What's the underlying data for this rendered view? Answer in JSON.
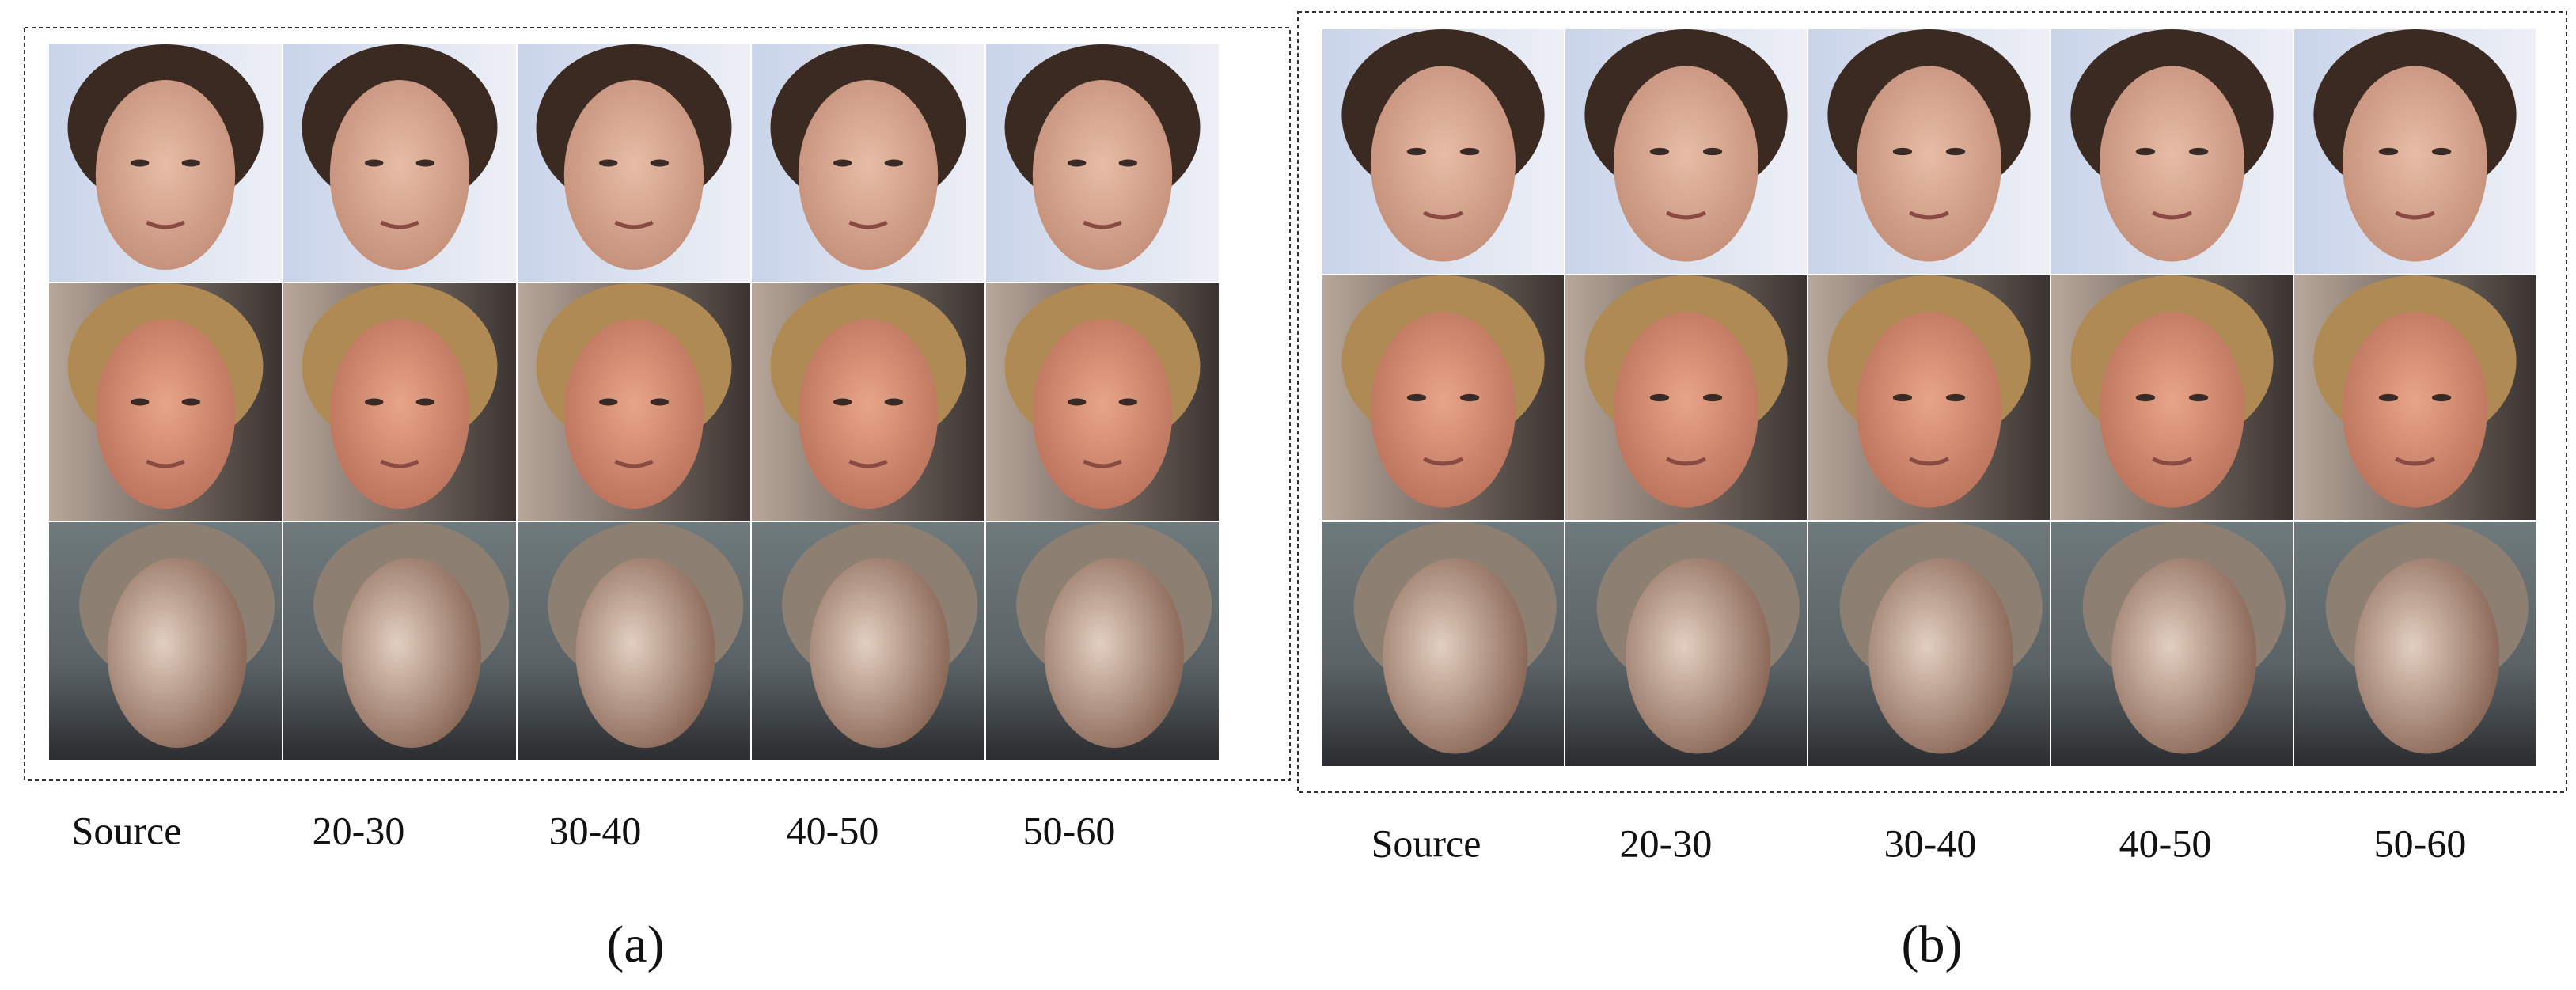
{
  "panels": [
    {
      "label": "(a)",
      "columns": [
        "Source",
        "20-30",
        "30-40",
        "40-50",
        "50-60"
      ]
    },
    {
      "label": "(b)",
      "columns": [
        "Source",
        "20-30",
        "30-40",
        "40-50",
        "50-60"
      ]
    }
  ]
}
